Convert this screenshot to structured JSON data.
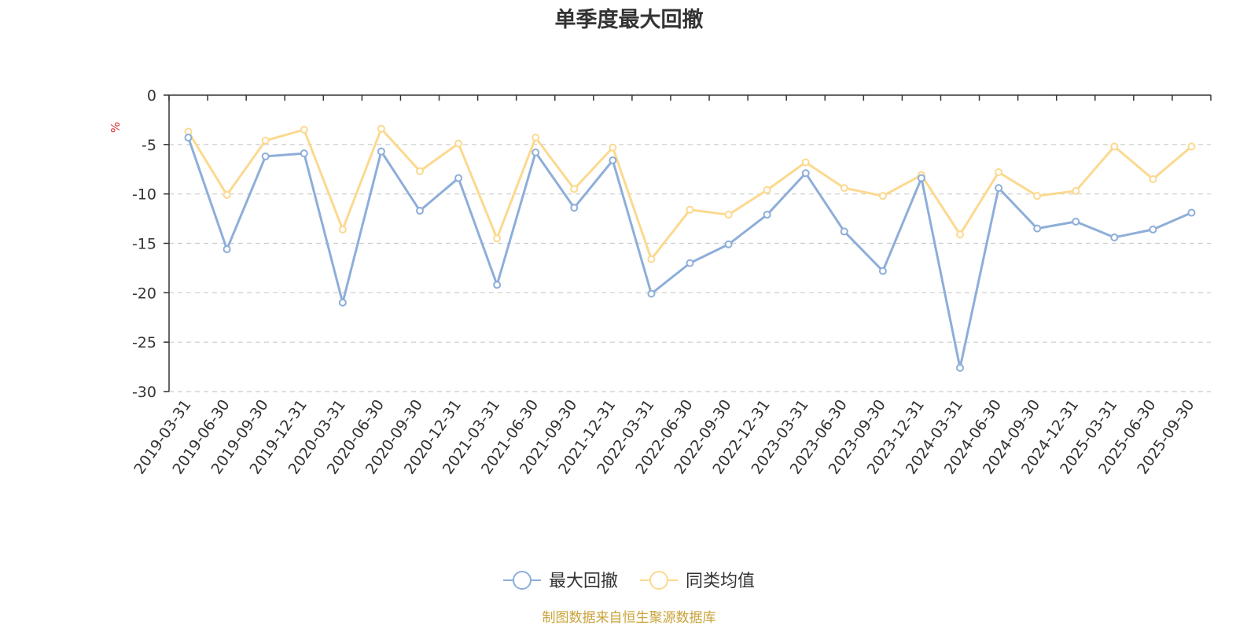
{
  "chart_data": {
    "type": "line",
    "title": "单季度最大回撤",
    "ylabel": "%",
    "ylim": [
      -30,
      0
    ],
    "yticks": [
      0,
      -5,
      -10,
      -15,
      -20,
      -25,
      -30
    ],
    "grid": true,
    "legend_position": "bottom",
    "categories": [
      "2019-03-31",
      "2019-06-30",
      "2019-09-30",
      "2019-12-31",
      "2020-03-31",
      "2020-06-30",
      "2020-09-30",
      "2020-12-31",
      "2021-03-31",
      "2021-06-30",
      "2021-09-30",
      "2021-12-31",
      "2022-03-31",
      "2022-06-30",
      "2022-09-30",
      "2022-12-31",
      "2023-03-31",
      "2023-06-30",
      "2023-09-30",
      "2023-12-31",
      "2024-03-31",
      "2024-06-30",
      "2024-09-30",
      "2024-12-31",
      "2025-03-31",
      "2025-06-30",
      "2025-09-30"
    ],
    "series": [
      {
        "name": "最大回撤",
        "color": "#8eaed9",
        "values": [
          -4.3,
          -15.6,
          -6.2,
          -5.9,
          -21.0,
          -5.7,
          -11.7,
          -8.4,
          -19.2,
          -5.8,
          -11.4,
          -6.6,
          -20.1,
          -17.0,
          -15.1,
          -12.1,
          -7.9,
          -13.8,
          -17.8,
          -8.4,
          -27.6,
          -9.4,
          -13.5,
          -12.8,
          -14.4,
          -13.6,
          -11.9
        ]
      },
      {
        "name": "同类均值",
        "color": "#fbd98f",
        "values": [
          -3.7,
          -10.1,
          -4.6,
          -3.5,
          -13.6,
          -3.4,
          -7.7,
          -4.9,
          -14.5,
          -4.3,
          -9.5,
          -5.3,
          -16.6,
          -11.6,
          -12.1,
          -9.6,
          -6.8,
          -9.4,
          -10.2,
          -8.1,
          -14.1,
          -7.8,
          -10.2,
          -9.7,
          -5.2,
          -8.5,
          -5.2
        ]
      }
    ]
  },
  "source": {
    "text": "制图数据来自恒生聚源数据库",
    "color": "#c9a33a"
  },
  "colors": {
    "axis": "#333333",
    "grid": "#cccccc",
    "unit": "#e03030"
  }
}
